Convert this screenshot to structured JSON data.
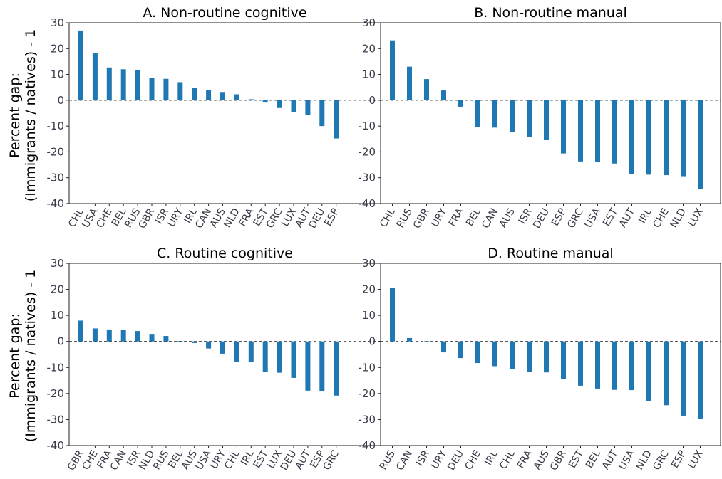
{
  "y_axis_label": [
    "Percent gap:",
    "(Immigrants / natives) - 1"
  ],
  "bar_color": "#1f77b4",
  "chart_data": [
    {
      "type": "bar",
      "title": "A. Non-routine cognitive",
      "categories": [
        "CHL",
        "USA",
        "CHE",
        "BEL",
        "RUS",
        "GBR",
        "ISR",
        "URY",
        "IRL",
        "CAN",
        "AUS",
        "NLD",
        "FRA",
        "EST",
        "GRC",
        "LUX",
        "AUT",
        "DEU",
        "ESP"
      ],
      "values": [
        27,
        18.2,
        12.7,
        12,
        11.7,
        8.7,
        8.3,
        7,
        4.8,
        4,
        3.2,
        2.3,
        0.4,
        -0.9,
        -3,
        -4.5,
        -5.7,
        -10,
        -14.8
      ],
      "ylim": [
        -40,
        30
      ],
      "yticks": [
        -40,
        -30,
        -20,
        -10,
        0,
        10,
        20,
        30
      ]
    },
    {
      "type": "bar",
      "title": "B. Non-routine manual",
      "categories": [
        "CHL",
        "RUS",
        "GBR",
        "URY",
        "FRA",
        "BEL",
        "CAN",
        "AUS",
        "ISR",
        "DEU",
        "ESP",
        "GRC",
        "USA",
        "EST",
        "AUT",
        "IRL",
        "CHE",
        "NLD",
        "LUX"
      ],
      "values": [
        23.2,
        13,
        8.2,
        3.8,
        -2.5,
        -10.3,
        -10.6,
        -12.2,
        -14.3,
        -15.4,
        -20.6,
        -23.7,
        -24,
        -24.5,
        -28.5,
        -28.8,
        -29,
        -29.4,
        -34.3
      ],
      "ylim": [
        -40,
        30
      ],
      "yticks": [
        -40,
        -30,
        -20,
        -10,
        0,
        10,
        20,
        30
      ]
    },
    {
      "type": "bar",
      "title": "C. Routine cognitive",
      "categories": [
        "GBR",
        "CHE",
        "FRA",
        "CAN",
        "ISR",
        "NLD",
        "RUS",
        "BEL",
        "AUS",
        "USA",
        "URY",
        "CHL",
        "IRL",
        "EST",
        "LUX",
        "DEU",
        "AUT",
        "ESP",
        "GRC"
      ],
      "values": [
        8,
        5,
        4.6,
        4.3,
        4,
        2.9,
        2.1,
        0.2,
        -0.6,
        -2.7,
        -4.7,
        -7.8,
        -8,
        -11.7,
        -12,
        -14,
        -18.9,
        -19.2,
        -20.8
      ],
      "ylim": [
        -40,
        30
      ],
      "yticks": [
        -40,
        -30,
        -20,
        -10,
        0,
        10,
        20,
        30
      ]
    },
    {
      "type": "bar",
      "title": "D. Routine manual",
      "categories": [
        "RUS",
        "CAN",
        "ISR",
        "URY",
        "DEU",
        "CHE",
        "IRL",
        "CHL",
        "FRA",
        "AUS",
        "GBR",
        "EST",
        "BEL",
        "AUT",
        "USA",
        "NLD",
        "GRC",
        "ESP",
        "LUX"
      ],
      "values": [
        20.5,
        1.3,
        0.1,
        -4.2,
        -6.4,
        -8.3,
        -9.5,
        -10.5,
        -11.7,
        -11.9,
        -14.3,
        -17,
        -18.1,
        -18.6,
        -18.7,
        -22.8,
        -24.5,
        -28.5,
        -29.6
      ],
      "ylim": [
        -40,
        30
      ],
      "yticks": [
        -40,
        -30,
        -20,
        -10,
        0,
        10,
        20,
        30
      ]
    }
  ]
}
